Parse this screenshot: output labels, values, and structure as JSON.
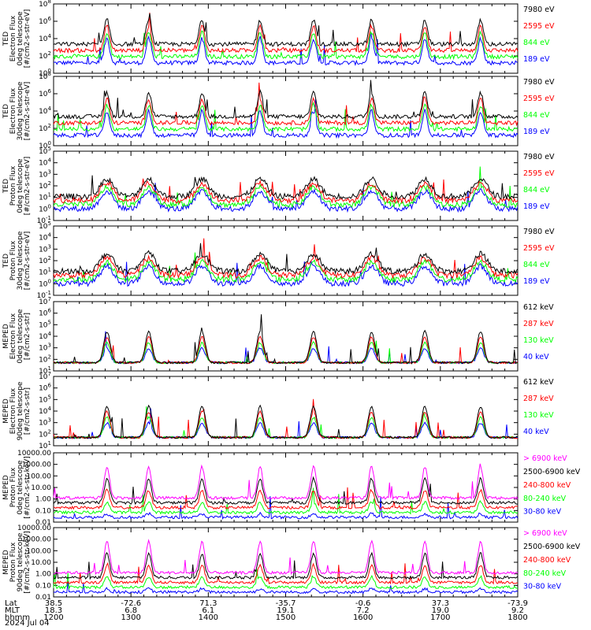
{
  "colors": {
    "blue": "#0000ff",
    "red": "#ff0000",
    "green": "#00ff00",
    "black": "#000000",
    "magenta": "#ff00ff"
  },
  "chart_data": {
    "type": "line",
    "time_ticks": [
      "1200",
      "1300",
      "1400",
      "1500",
      "1600",
      "1700",
      "1800"
    ],
    "date_label": "2024 Jul 04",
    "x_row_labels": [
      "Lat",
      "MLT",
      "hhmm"
    ],
    "lat_values": [
      "38.5",
      "-72.6",
      "71.3",
      "-35.7",
      "-0.6",
      "37.3",
      "-73.9"
    ],
    "mlt_values": [
      "18.3",
      "6.8",
      "6.1",
      "19.1",
      "7.2",
      "19.0",
      "9.2"
    ],
    "panels": [
      {
        "id": "ted-e-0",
        "ylabel": [
          "TED",
          "Electron Flux",
          "0deg telescope",
          "[#/cm2-s-str-eV]"
        ],
        "yscale": "log",
        "ylim_exp": [
          0,
          8
        ],
        "yticks": [
          "10^0",
          "10^2",
          "10^4",
          "10^6",
          "10^8"
        ],
        "legend": [
          {
            "label": "7980 eV",
            "color": "black"
          },
          {
            "label": "2595 eV",
            "color": "red"
          },
          {
            "label": "844 eV",
            "color": "green"
          },
          {
            "label": "189 eV",
            "color": "blue"
          }
        ]
      },
      {
        "id": "ted-e-30",
        "ylabel": [
          "TED",
          "Electron Flux",
          "30deg telescope",
          "[#/cm2-s-str-eV]"
        ],
        "yscale": "log",
        "ylim_exp": [
          0,
          8
        ],
        "yticks": [
          "10^0",
          "10^2",
          "10^4",
          "10^6",
          "10^8"
        ],
        "legend": [
          {
            "label": "7980 eV",
            "color": "black"
          },
          {
            "label": "2595 eV",
            "color": "red"
          },
          {
            "label": "844 eV",
            "color": "green"
          },
          {
            "label": "189 eV",
            "color": "blue"
          }
        ]
      },
      {
        "id": "ted-p-0",
        "ylabel": [
          "TED",
          "Proton Flux",
          "0deg telescope",
          "[#/cm2-s-str-eV]"
        ],
        "yscale": "log",
        "ylim_exp": [
          -1,
          5
        ],
        "yticks": [
          "10^-1",
          "10^0",
          "10^1",
          "10^2",
          "10^3",
          "10^4",
          "10^5"
        ],
        "legend": [
          {
            "label": "7980 eV",
            "color": "black"
          },
          {
            "label": "2595 eV",
            "color": "red"
          },
          {
            "label": "844 eV",
            "color": "green"
          },
          {
            "label": "189 eV",
            "color": "blue"
          }
        ]
      },
      {
        "id": "ted-p-30",
        "ylabel": [
          "TED",
          "Proton Flux",
          "30deg telescope",
          "[#/cm2-s-str-eV]"
        ],
        "yscale": "log",
        "ylim_exp": [
          -1,
          5
        ],
        "yticks": [
          "10^-1",
          "10^0",
          "10^1",
          "10^2",
          "10^3",
          "10^4",
          "10^5"
        ],
        "legend": [
          {
            "label": "7980 eV",
            "color": "black"
          },
          {
            "label": "2595 eV",
            "color": "red"
          },
          {
            "label": "844 eV",
            "color": "green"
          },
          {
            "label": "189 eV",
            "color": "blue"
          }
        ]
      },
      {
        "id": "meped-e-0",
        "ylabel": [
          "MEPED",
          "Electron Flux",
          "0deg telescope",
          "[#/cm2-s-str]"
        ],
        "yscale": "log",
        "ylim_exp": [
          1,
          7
        ],
        "yticks": [
          "10^1",
          "10^2",
          "10^3",
          "10^4",
          "10^5",
          "10^6",
          "10^7"
        ],
        "legend": [
          {
            "label": "612 keV",
            "color": "black"
          },
          {
            "label": "287 keV",
            "color": "red"
          },
          {
            "label": "130 keV",
            "color": "green"
          },
          {
            "label": "40 keV",
            "color": "blue"
          }
        ]
      },
      {
        "id": "meped-e-90",
        "ylabel": [
          "MEPED",
          "Electron Flux",
          "90deg telescope",
          "[#/cm2-s-str]"
        ],
        "yscale": "log",
        "ylim_exp": [
          1,
          7
        ],
        "yticks": [
          "10^1",
          "10^2",
          "10^3",
          "10^4",
          "10^5",
          "10^6",
          "10^7"
        ],
        "legend": [
          {
            "label": "612 keV",
            "color": "black"
          },
          {
            "label": "287 keV",
            "color": "red"
          },
          {
            "label": "130 keV",
            "color": "green"
          },
          {
            "label": "40 keV",
            "color": "blue"
          }
        ]
      },
      {
        "id": "meped-p-0",
        "ylabel": [
          "MEPED",
          "Proton Flux",
          "0deg telescope",
          "[#/cm2-s-str-keV]"
        ],
        "yscale": "log",
        "ylim_exp": [
          -2,
          4
        ],
        "yticks": [
          "0.01",
          "0.10",
          "1.00",
          "10.00",
          "100.00",
          "1000.00",
          "10000.00"
        ],
        "legend": [
          {
            "label": "> 6900 keV",
            "color": "magenta"
          },
          {
            "label": "2500-6900 keV",
            "color": "black"
          },
          {
            "label": "240-800 keV",
            "color": "red"
          },
          {
            "label": "80-240 keV",
            "color": "green"
          },
          {
            "label": "30-80 keV",
            "color": "blue"
          }
        ]
      },
      {
        "id": "meped-p-90",
        "ylabel": [
          "MEPED",
          "Proton Flux",
          "90deg telescope",
          "[#/cm2-s-str-keV]"
        ],
        "yscale": "log",
        "ylim_exp": [
          -2,
          4
        ],
        "yticks": [
          "0.01",
          "0.10",
          "1.00",
          "10.00",
          "100.00",
          "1000.00",
          "10000.00"
        ],
        "legend": [
          {
            "label": "> 6900 keV",
            "color": "magenta"
          },
          {
            "label": "2500-6900 keV",
            "color": "black"
          },
          {
            "label": "240-800 keV",
            "color": "red"
          },
          {
            "label": "80-240 keV",
            "color": "green"
          },
          {
            "label": "30-80 keV",
            "color": "blue"
          }
        ]
      }
    ]
  }
}
